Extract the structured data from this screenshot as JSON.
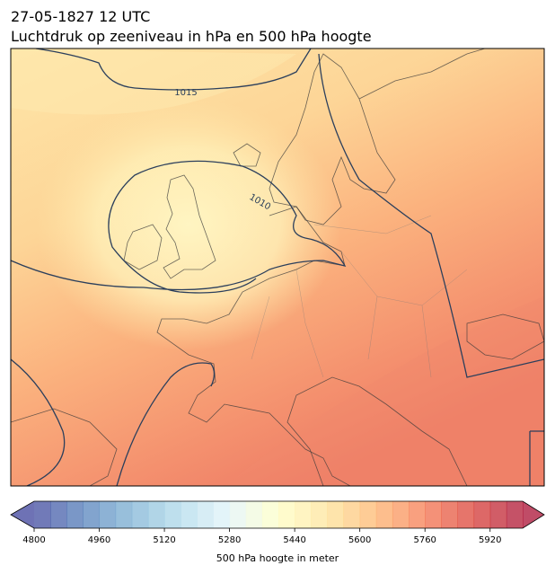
{
  "title": "27-05-1827 12 UTC",
  "subtitle": "Luchtdruk op zeeniveau in hPa en 500 hPa hoogte",
  "isobar_labels": [
    "1015",
    "1010"
  ],
  "colorbar": {
    "label": "500 hPa hoogte in meter",
    "vmin": 4800,
    "vmax": 6000,
    "step": 40,
    "ticks": [
      4800,
      4960,
      5120,
      5280,
      5440,
      5600,
      5760,
      5920
    ],
    "colormap": "RdYlBu_r",
    "alpha": 0.7
  }
}
